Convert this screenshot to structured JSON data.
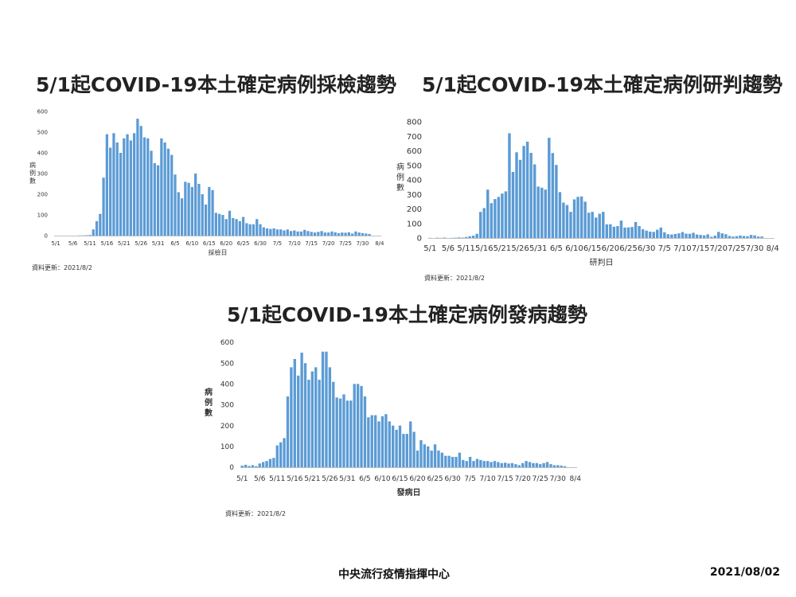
{
  "footer": {
    "organization": "中央流行疫情指揮中心",
    "date": "2021/08/02"
  },
  "colors": {
    "bar": "#5b9bd5",
    "axis": "#bfbfbf"
  },
  "chart_data": [
    {
      "type": "bar",
      "title": "5/1起COVID-19本土確定病例採檢趨勢",
      "xlabel": "採檢日",
      "ylabel": "病例數",
      "ylim": [
        0,
        600
      ],
      "yticks": [
        "0",
        "100",
        "200",
        "300",
        "400",
        "500",
        "600"
      ],
      "xtick_labels": [
        "5/1",
        "5/6",
        "5/11",
        "5/16",
        "5/21",
        "5/26",
        "5/31",
        "6/5",
        "6/10",
        "6/15",
        "6/20",
        "6/25",
        "6/30",
        "7/5",
        "7/10",
        "7/15",
        "7/20",
        "7/25",
        "7/30",
        "8/4"
      ],
      "categories": [
        "5/1",
        "5/2",
        "5/3",
        "5/4",
        "5/5",
        "5/6",
        "5/7",
        "5/8",
        "5/9",
        "5/10",
        "5/11",
        "5/12",
        "5/13",
        "5/14",
        "5/15",
        "5/16",
        "5/17",
        "5/18",
        "5/19",
        "5/20",
        "5/21",
        "5/22",
        "5/23",
        "5/24",
        "5/25",
        "5/26",
        "5/27",
        "5/28",
        "5/29",
        "5/30",
        "5/31",
        "6/1",
        "6/2",
        "6/3",
        "6/4",
        "6/5",
        "6/6",
        "6/7",
        "6/8",
        "6/9",
        "6/10",
        "6/11",
        "6/12",
        "6/13",
        "6/14",
        "6/15",
        "6/16",
        "6/17",
        "6/18",
        "6/19",
        "6/20",
        "6/21",
        "6/22",
        "6/23",
        "6/24",
        "6/25",
        "6/26",
        "6/27",
        "6/28",
        "6/29",
        "6/30",
        "7/1",
        "7/2",
        "7/3",
        "7/4",
        "7/5",
        "7/6",
        "7/7",
        "7/8",
        "7/9",
        "7/10",
        "7/11",
        "7/12",
        "7/13",
        "7/14",
        "7/15",
        "7/16",
        "7/17",
        "7/18",
        "7/19",
        "7/20",
        "7/21",
        "7/22",
        "7/23",
        "7/24",
        "7/25",
        "7/26",
        "7/27",
        "7/28",
        "7/29",
        "7/30",
        "7/31",
        "8/1"
      ],
      "values": [
        0,
        0,
        0,
        0,
        0,
        0,
        0,
        1,
        1,
        2,
        3,
        30,
        70,
        105,
        280,
        490,
        425,
        495,
        450,
        400,
        470,
        490,
        460,
        495,
        565,
        530,
        475,
        470,
        410,
        350,
        340,
        470,
        450,
        420,
        390,
        295,
        210,
        180,
        260,
        255,
        235,
        300,
        250,
        200,
        150,
        235,
        220,
        110,
        105,
        100,
        80,
        120,
        85,
        80,
        70,
        90,
        60,
        55,
        55,
        80,
        55,
        40,
        35,
        32,
        35,
        30,
        30,
        25,
        30,
        22,
        25,
        20,
        20,
        28,
        22,
        18,
        15,
        18,
        22,
        15,
        15,
        20,
        16,
        12,
        15,
        14,
        16,
        10,
        20,
        15,
        12,
        10,
        8
      ],
      "update_text": "資料更新：2021/8/2"
    },
    {
      "type": "bar",
      "title": "5/1起COVID-19本土確定病例研判趨勢",
      "xlabel": "研判日",
      "ylabel": "病例數",
      "ylim": [
        0,
        800
      ],
      "yticks": [
        "0",
        "100",
        "200",
        "300",
        "400",
        "500",
        "600",
        "700",
        "800"
      ],
      "xtick_labels": [
        "5/1",
        "5/6",
        "5/11",
        "5/16",
        "5/21",
        "5/26",
        "5/31",
        "6/5",
        "6/10",
        "6/15",
        "6/20",
        "6/25",
        "6/30",
        "7/5",
        "7/10",
        "7/15",
        "7/20",
        "7/25",
        "7/30",
        "8/4"
      ],
      "categories": [
        "5/1",
        "5/2",
        "5/3",
        "5/4",
        "5/5",
        "5/6",
        "5/7",
        "5/8",
        "5/9",
        "5/10",
        "5/11",
        "5/12",
        "5/13",
        "5/14",
        "5/15",
        "5/16",
        "5/17",
        "5/18",
        "5/19",
        "5/20",
        "5/21",
        "5/22",
        "5/23",
        "5/24",
        "5/25",
        "5/26",
        "5/27",
        "5/28",
        "5/29",
        "5/30",
        "5/31",
        "6/1",
        "6/2",
        "6/3",
        "6/4",
        "6/5",
        "6/6",
        "6/7",
        "6/8",
        "6/9",
        "6/10",
        "6/11",
        "6/12",
        "6/13",
        "6/14",
        "6/15",
        "6/16",
        "6/17",
        "6/18",
        "6/19",
        "6/20",
        "6/21",
        "6/22",
        "6/23",
        "6/24",
        "6/25",
        "6/26",
        "6/27",
        "6/28",
        "6/29",
        "6/30",
        "7/1",
        "7/2",
        "7/3",
        "7/4",
        "7/5",
        "7/6",
        "7/7",
        "7/8",
        "7/9",
        "7/10",
        "7/11",
        "7/12",
        "7/13",
        "7/14",
        "7/15",
        "7/16",
        "7/17",
        "7/18",
        "7/19",
        "7/20",
        "7/21",
        "7/22",
        "7/23",
        "7/24",
        "7/25",
        "7/26",
        "7/27",
        "7/28",
        "7/29",
        "7/30",
        "7/31",
        "8/1"
      ],
      "values": [
        1,
        0,
        2,
        1,
        3,
        0,
        1,
        2,
        4,
        3,
        7,
        12,
        16,
        29,
        180,
        206,
        333,
        240,
        268,
        283,
        306,
        321,
        721,
        455,
        590,
        538,
        634,
        663,
        586,
        507,
        354,
        346,
        333,
        690,
        585,
        503,
        316,
        244,
        227,
        180,
        266,
        283,
        286,
        250,
        174,
        180,
        141,
        167,
        180,
        94,
        95,
        78,
        82,
        120,
        72,
        73,
        76,
        110,
        82,
        60,
        51,
        44,
        42,
        57,
        72,
        39,
        26,
        24,
        28,
        32,
        41,
        30,
        29,
        36,
        24,
        21,
        18,
        25,
        8,
        16,
        42,
        32,
        26,
        14,
        10,
        13,
        17,
        14,
        12,
        21,
        18,
        10,
        10
      ],
      "update_text": "資料更新：2021/8/2"
    },
    {
      "type": "bar",
      "title": "5/1起COVID-19本土確定病例發病趨勢",
      "xlabel": "發病日",
      "ylabel": "病例數",
      "ylim": [
        0,
        600
      ],
      "yticks": [
        "0",
        "100",
        "200",
        "300",
        "400",
        "500",
        "600"
      ],
      "xtick_labels": [
        "5/1",
        "5/6",
        "5/11",
        "5/16",
        "5/21",
        "5/26",
        "5/31",
        "6/5",
        "6/10",
        "6/15",
        "6/20",
        "6/25",
        "6/30",
        "7/5",
        "7/10",
        "7/15",
        "7/20",
        "7/25",
        "7/30",
        "8/4"
      ],
      "categories": [
        "5/1",
        "5/2",
        "5/3",
        "5/4",
        "5/5",
        "5/6",
        "5/7",
        "5/8",
        "5/9",
        "5/10",
        "5/11",
        "5/12",
        "5/13",
        "5/14",
        "5/15",
        "5/16",
        "5/17",
        "5/18",
        "5/19",
        "5/20",
        "5/21",
        "5/22",
        "5/23",
        "5/24",
        "5/25",
        "5/26",
        "5/27",
        "5/28",
        "5/29",
        "5/30",
        "5/31",
        "6/1",
        "6/2",
        "6/3",
        "6/4",
        "6/5",
        "6/6",
        "6/7",
        "6/8",
        "6/9",
        "6/10",
        "6/11",
        "6/12",
        "6/13",
        "6/14",
        "6/15",
        "6/16",
        "6/17",
        "6/18",
        "6/19",
        "6/20",
        "6/21",
        "6/22",
        "6/23",
        "6/24",
        "6/25",
        "6/26",
        "6/27",
        "6/28",
        "6/29",
        "6/30",
        "7/1",
        "7/2",
        "7/3",
        "7/4",
        "7/5",
        "7/6",
        "7/7",
        "7/8",
        "7/9",
        "7/10",
        "7/11",
        "7/12",
        "7/13",
        "7/14",
        "7/15",
        "7/16",
        "7/17",
        "7/18",
        "7/19",
        "7/20",
        "7/21",
        "7/22",
        "7/23",
        "7/24",
        "7/25",
        "7/26",
        "7/27",
        "7/28",
        "7/29",
        "7/30",
        "7/31",
        "8/1"
      ],
      "values": [
        8,
        12,
        6,
        10,
        5,
        18,
        25,
        30,
        40,
        45,
        105,
        120,
        140,
        340,
        480,
        520,
        440,
        550,
        500,
        420,
        460,
        480,
        420,
        555,
        555,
        480,
        410,
        335,
        330,
        350,
        320,
        320,
        400,
        400,
        390,
        340,
        240,
        250,
        250,
        220,
        245,
        255,
        220,
        200,
        180,
        200,
        160,
        160,
        220,
        170,
        80,
        130,
        110,
        100,
        80,
        110,
        80,
        70,
        55,
        55,
        50,
        50,
        70,
        35,
        30,
        50,
        30,
        40,
        35,
        30,
        30,
        25,
        30,
        25,
        20,
        22,
        18,
        20,
        15,
        10,
        20,
        30,
        25,
        20,
        20,
        15,
        20,
        25,
        15,
        10,
        10,
        8,
        5
      ],
      "update_text": "資料更新：2021/8/2"
    }
  ]
}
